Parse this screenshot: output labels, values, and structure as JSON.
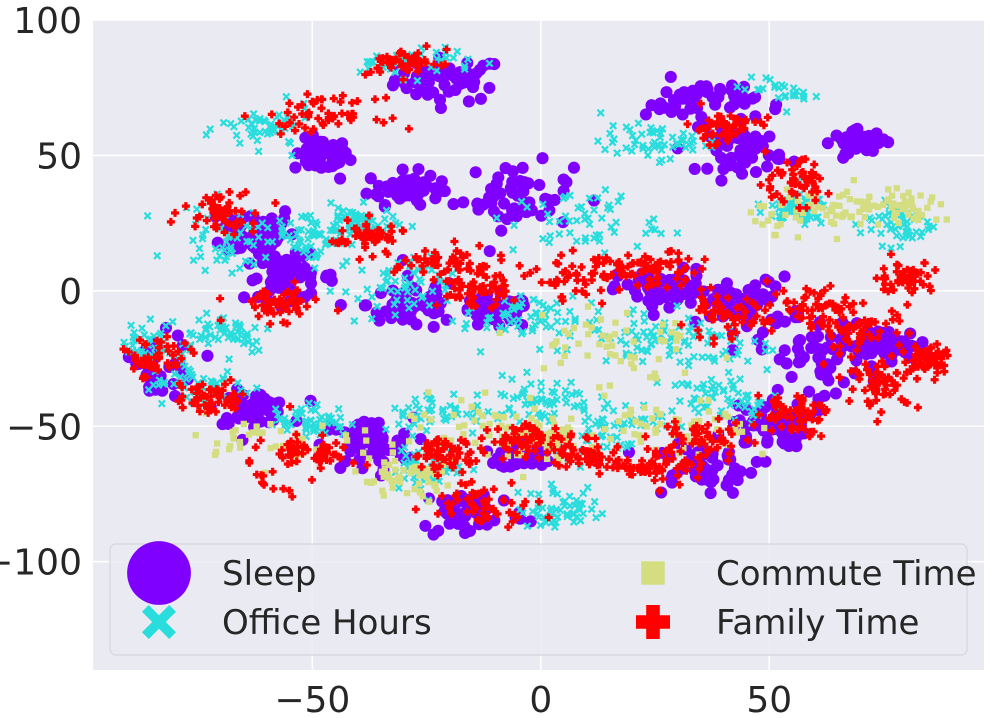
{
  "chart_data": {
    "type": "scatter",
    "title": "",
    "xlabel": "",
    "ylabel": "",
    "xlim": [
      -98,
      97
    ],
    "ylim": [
      -140,
      100
    ],
    "x_ticks": [
      -50,
      0,
      50
    ],
    "y_ticks": [
      100,
      50,
      0,
      -50,
      -100
    ],
    "x_tick_labels": [
      "−50",
      "0",
      "50"
    ],
    "y_tick_labels": [
      "100",
      "50",
      "0",
      "−50",
      "−100"
    ],
    "grid": true,
    "legend_position": "lower-center",
    "series": [
      {
        "name": "Sleep",
        "color": "#8000ff",
        "marker": "circle",
        "clusters": [
          [
            -20,
            78,
            6,
            4
          ],
          [
            -48,
            50,
            3,
            3
          ],
          [
            -62,
            22,
            4,
            5
          ],
          [
            -30,
            38,
            4,
            3
          ],
          [
            -5,
            35,
            6,
            6
          ],
          [
            -55,
            5,
            5,
            4
          ],
          [
            -28,
            -5,
            5,
            5
          ],
          [
            -10,
            -8,
            4,
            3
          ],
          [
            -85,
            -28,
            5,
            6
          ],
          [
            -63,
            -43,
            4,
            3
          ],
          [
            -38,
            -57,
            5,
            5
          ],
          [
            -15,
            -82,
            6,
            5
          ],
          [
            -3,
            -60,
            3,
            3
          ],
          [
            35,
            -65,
            6,
            5
          ],
          [
            50,
            -50,
            4,
            4
          ],
          [
            27,
            0,
            5,
            4
          ],
          [
            45,
            -5,
            5,
            5
          ],
          [
            60,
            -25,
            6,
            8
          ],
          [
            75,
            -20,
            5,
            3
          ],
          [
            45,
            52,
            4,
            4
          ],
          [
            70,
            55,
            3,
            2
          ],
          [
            35,
            70,
            6,
            4
          ]
        ]
      },
      {
        "name": "Office Hours",
        "color": "#2adddd",
        "marker": "x",
        "clusters": [
          [
            -30,
            85,
            8,
            3
          ],
          [
            -60,
            60,
            5,
            4
          ],
          [
            -40,
            25,
            4,
            3
          ],
          [
            -68,
            20,
            6,
            6
          ],
          [
            -50,
            20,
            4,
            5
          ],
          [
            -32,
            0,
            6,
            6
          ],
          [
            -5,
            -10,
            6,
            4
          ],
          [
            20,
            -15,
            10,
            5
          ],
          [
            35,
            -20,
            8,
            6
          ],
          [
            -70,
            -15,
            6,
            4
          ],
          [
            -75,
            -35,
            6,
            4
          ],
          [
            -20,
            -45,
            8,
            4
          ],
          [
            0,
            -40,
            6,
            4
          ],
          [
            15,
            -50,
            6,
            5
          ],
          [
            40,
            -40,
            6,
            4
          ],
          [
            10,
            25,
            8,
            6
          ],
          [
            25,
            55,
            6,
            3
          ],
          [
            55,
            75,
            6,
            3
          ],
          [
            78,
            25,
            4,
            4
          ],
          [
            55,
            30,
            4,
            3
          ],
          [
            -88,
            -20,
            4,
            4
          ],
          [
            -50,
            -48,
            4,
            3
          ],
          [
            -25,
            -65,
            4,
            4
          ],
          [
            5,
            -80,
            5,
            4
          ]
        ]
      },
      {
        "name": "Commute Time",
        "color": "#d4dd80",
        "marker": "square",
        "clusters": [
          [
            -68,
            -55,
            12,
            4
          ],
          [
            15,
            -20,
            10,
            8
          ],
          [
            -10,
            -50,
            10,
            6
          ],
          [
            30,
            -52,
            8,
            6
          ],
          [
            62,
            30,
            8,
            4
          ],
          [
            80,
            30,
            6,
            3
          ],
          [
            -30,
            -70,
            6,
            4
          ],
          [
            0,
            -55,
            5,
            4
          ]
        ]
      },
      {
        "name": "Family Time",
        "color": "#ff0000",
        "marker": "plus",
        "clusters": [
          [
            -70,
            30,
            4,
            4
          ],
          [
            -48,
            65,
            6,
            3
          ],
          [
            -30,
            85,
            4,
            3
          ],
          [
            -58,
            -5,
            5,
            3
          ],
          [
            -85,
            -25,
            4,
            4
          ],
          [
            -72,
            -40,
            4,
            3
          ],
          [
            -50,
            -60,
            5,
            3
          ],
          [
            -38,
            20,
            4,
            3
          ],
          [
            -20,
            10,
            6,
            3
          ],
          [
            -15,
            0,
            4,
            3
          ],
          [
            10,
            5,
            6,
            4
          ],
          [
            25,
            8,
            5,
            3
          ],
          [
            -12,
            -78,
            6,
            4
          ],
          [
            -3,
            -55,
            4,
            3
          ],
          [
            -20,
            -60,
            4,
            3
          ],
          [
            10,
            -60,
            4,
            3
          ],
          [
            25,
            -65,
            5,
            3
          ],
          [
            35,
            -55,
            5,
            4
          ],
          [
            55,
            -45,
            4,
            4
          ],
          [
            40,
            60,
            4,
            3
          ],
          [
            55,
            40,
            4,
            4
          ],
          [
            40,
            -10,
            5,
            4
          ],
          [
            70,
            -15,
            5,
            5
          ],
          [
            75,
            -35,
            4,
            4
          ],
          [
            85,
            -25,
            3,
            3
          ],
          [
            60,
            -5,
            5,
            4
          ],
          [
            80,
            5,
            3,
            3
          ],
          [
            -60,
            -75,
            4,
            3
          ]
        ]
      }
    ]
  }
}
